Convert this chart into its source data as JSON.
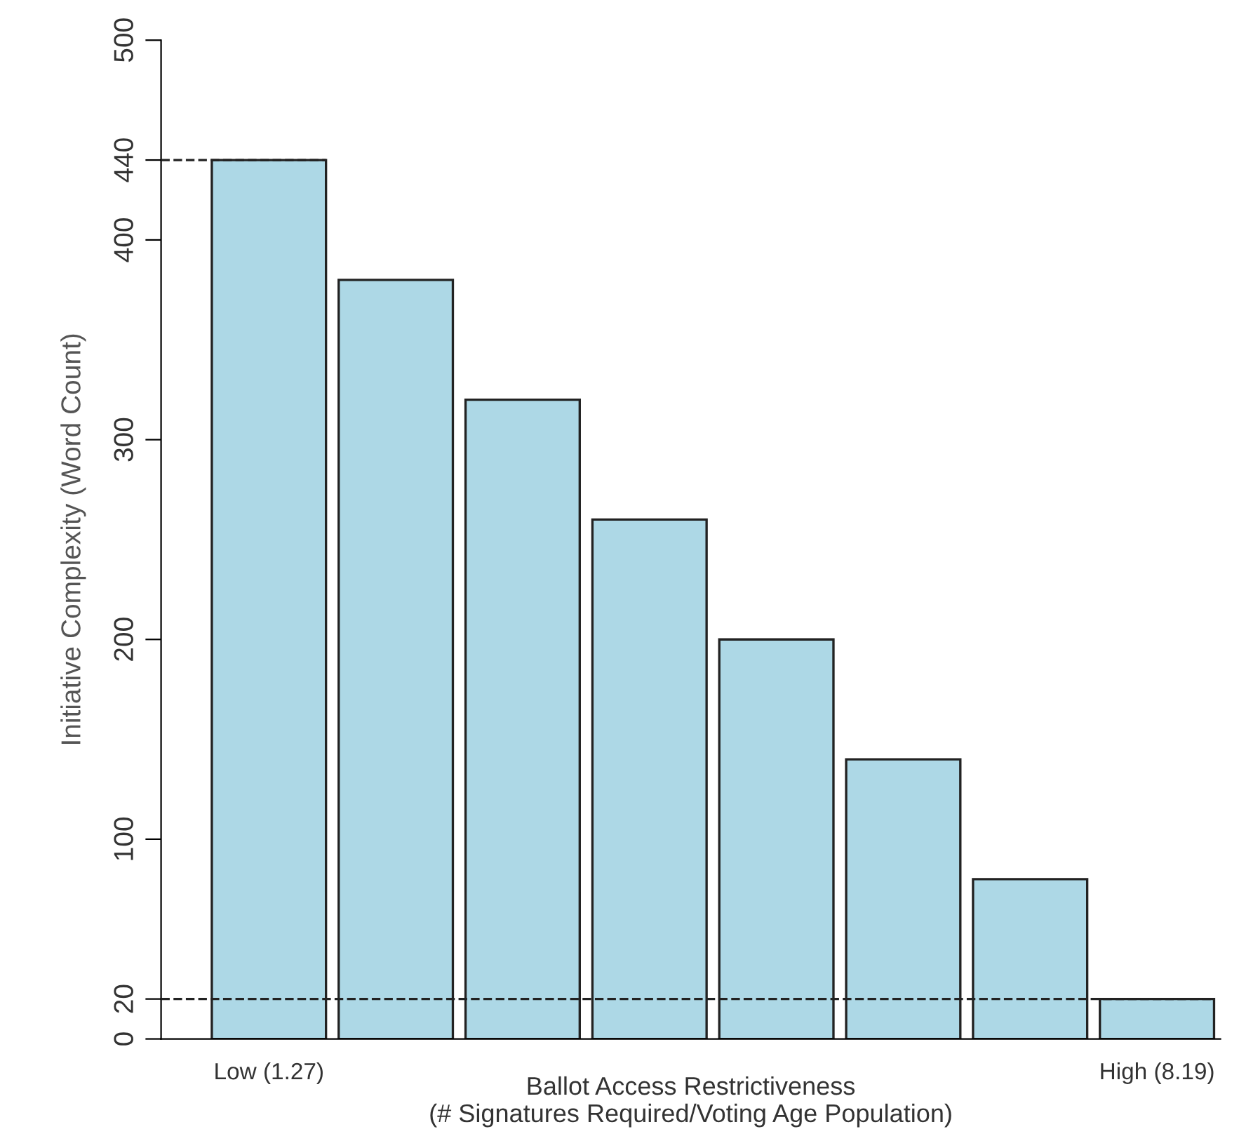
{
  "chart_data": {
    "type": "bar",
    "xlabel": "Ballot Access Restrictiveness\n(# Signatures Required/Voting Age Population)",
    "ylabel": "Initiative Complexity (Word Count)",
    "categories": [
      "Low (1.27)",
      null,
      null,
      null,
      null,
      null,
      null,
      "High (8.19)"
    ],
    "values": [
      440,
      380,
      320,
      260,
      200,
      140,
      80,
      20
    ],
    "color": "#add8e6",
    "ylim": [
      0,
      500
    ],
    "yticks": [
      0,
      20,
      100,
      200,
      300,
      400,
      440,
      500
    ],
    "ref_lines": [
      {
        "axis": "y",
        "value": 440,
        "line_style": "dashed"
      },
      {
        "axis": "y",
        "value": 20,
        "line_style": "dashed"
      }
    ],
    "grid": false
  }
}
